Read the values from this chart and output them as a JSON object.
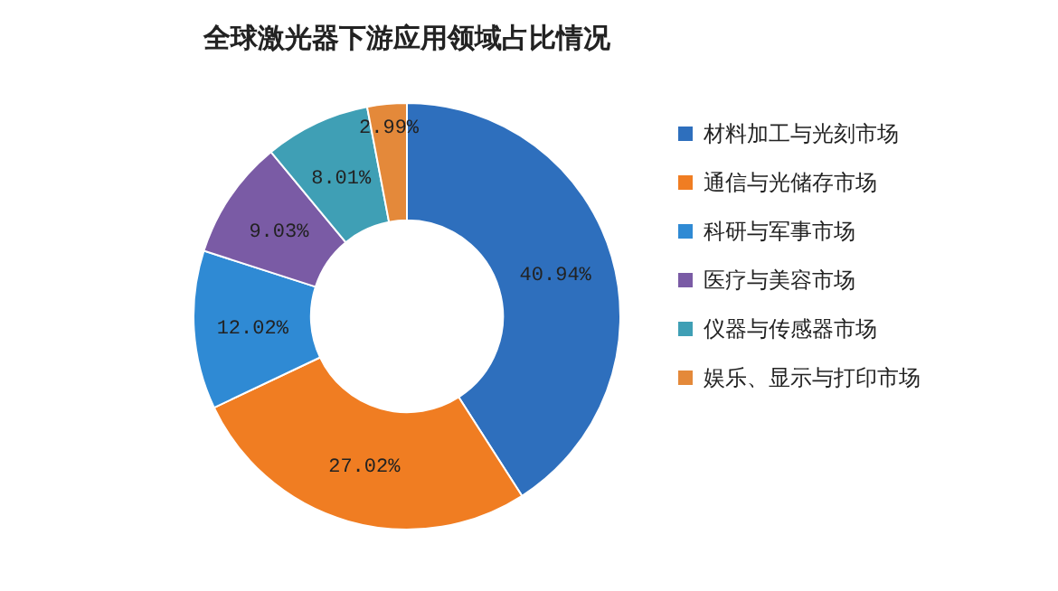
{
  "chart_data": {
    "type": "donut",
    "title": "全球激光器下游应用领域占比情况",
    "categories": [
      "材料加工与光刻市场",
      "通信与光储存市场",
      "科研与军事市场",
      "医疗与美容市场",
      "仪器与传感器市场",
      "娱乐、显示与打印市场"
    ],
    "values": [
      40.94,
      27.02,
      12.02,
      9.03,
      8.01,
      2.99
    ],
    "colors": [
      "#2e6fbd",
      "#f07d22",
      "#2f8ad4",
      "#7a5ba5",
      "#3f9fb5",
      "#e4893a"
    ],
    "value_labels": [
      "40.94%",
      "27.02%",
      "12.02%",
      "9.03%",
      "8.01%",
      "2.99%"
    ],
    "legend": "right"
  }
}
